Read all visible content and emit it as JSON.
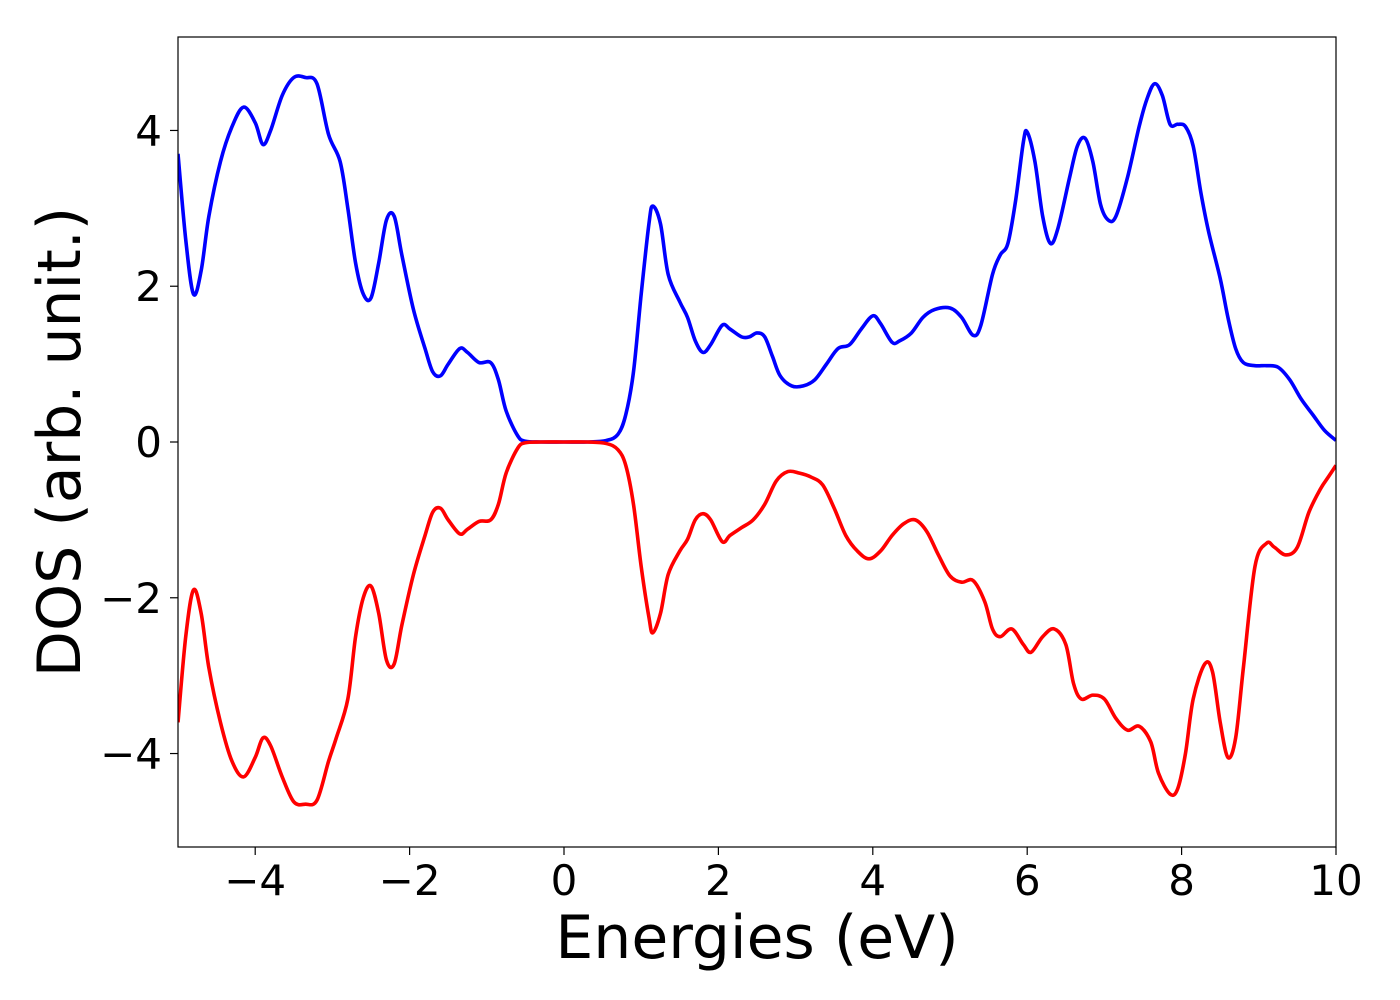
{
  "chart_data": {
    "type": "line",
    "title": "",
    "xlabel": "Energies (eV)",
    "ylabel": "DOS (arb. unit.)",
    "xlim": [
      -5,
      10
    ],
    "ylim": [
      -5.2,
      5.2
    ],
    "xticks": [
      -4,
      -2,
      0,
      2,
      4,
      6,
      8,
      10
    ],
    "xtick_labels": [
      "−4",
      "−2",
      "0",
      "2",
      "4",
      "6",
      "8",
      "10"
    ],
    "yticks": [
      -4,
      -2,
      0,
      2,
      4
    ],
    "ytick_labels": [
      "−4",
      "−2",
      "0",
      "2",
      "4"
    ],
    "grid": false,
    "legend": "none",
    "series": [
      {
        "color": "#0000ff",
        "points": [
          [
            -5.0,
            3.7
          ],
          [
            -4.9,
            2.6
          ],
          [
            -4.8,
            1.9
          ],
          [
            -4.7,
            2.2
          ],
          [
            -4.6,
            2.9
          ],
          [
            -4.45,
            3.6
          ],
          [
            -4.3,
            4.05
          ],
          [
            -4.15,
            4.3
          ],
          [
            -4.0,
            4.1
          ],
          [
            -3.9,
            3.82
          ],
          [
            -3.8,
            4.0
          ],
          [
            -3.65,
            4.45
          ],
          [
            -3.5,
            4.68
          ],
          [
            -3.35,
            4.68
          ],
          [
            -3.2,
            4.6
          ],
          [
            -3.05,
            3.95
          ],
          [
            -2.9,
            3.6
          ],
          [
            -2.8,
            3.0
          ],
          [
            -2.7,
            2.3
          ],
          [
            -2.6,
            1.9
          ],
          [
            -2.5,
            1.85
          ],
          [
            -2.4,
            2.3
          ],
          [
            -2.3,
            2.85
          ],
          [
            -2.2,
            2.9
          ],
          [
            -2.1,
            2.4
          ],
          [
            -1.95,
            1.7
          ],
          [
            -1.8,
            1.2
          ],
          [
            -1.7,
            0.9
          ],
          [
            -1.6,
            0.85
          ],
          [
            -1.5,
            1.0
          ],
          [
            -1.35,
            1.2
          ],
          [
            -1.25,
            1.15
          ],
          [
            -1.1,
            1.02
          ],
          [
            -0.95,
            1.02
          ],
          [
            -0.85,
            0.8
          ],
          [
            -0.75,
            0.4
          ],
          [
            -0.6,
            0.08
          ],
          [
            -0.5,
            0.01
          ],
          [
            -0.3,
            0.0
          ],
          [
            0.0,
            0.0
          ],
          [
            0.3,
            0.0
          ],
          [
            0.55,
            0.02
          ],
          [
            0.7,
            0.1
          ],
          [
            0.8,
            0.35
          ],
          [
            0.9,
            0.9
          ],
          [
            1.0,
            1.9
          ],
          [
            1.1,
            2.8
          ],
          [
            1.15,
            3.03
          ],
          [
            1.25,
            2.8
          ],
          [
            1.35,
            2.15
          ],
          [
            1.5,
            1.8
          ],
          [
            1.6,
            1.6
          ],
          [
            1.7,
            1.3
          ],
          [
            1.8,
            1.15
          ],
          [
            1.9,
            1.25
          ],
          [
            2.05,
            1.5
          ],
          [
            2.15,
            1.45
          ],
          [
            2.3,
            1.35
          ],
          [
            2.4,
            1.35
          ],
          [
            2.5,
            1.4
          ],
          [
            2.6,
            1.35
          ],
          [
            2.7,
            1.1
          ],
          [
            2.8,
            0.85
          ],
          [
            2.95,
            0.72
          ],
          [
            3.1,
            0.72
          ],
          [
            3.25,
            0.8
          ],
          [
            3.4,
            1.0
          ],
          [
            3.55,
            1.2
          ],
          [
            3.7,
            1.25
          ],
          [
            3.85,
            1.45
          ],
          [
            4.0,
            1.62
          ],
          [
            4.1,
            1.52
          ],
          [
            4.25,
            1.28
          ],
          [
            4.35,
            1.3
          ],
          [
            4.5,
            1.4
          ],
          [
            4.65,
            1.6
          ],
          [
            4.8,
            1.7
          ],
          [
            5.0,
            1.72
          ],
          [
            5.15,
            1.6
          ],
          [
            5.3,
            1.37
          ],
          [
            5.4,
            1.5
          ],
          [
            5.55,
            2.15
          ],
          [
            5.65,
            2.4
          ],
          [
            5.75,
            2.55
          ],
          [
            5.85,
            3.1
          ],
          [
            5.95,
            3.85
          ],
          [
            6.0,
            3.98
          ],
          [
            6.1,
            3.6
          ],
          [
            6.2,
            2.9
          ],
          [
            6.3,
            2.55
          ],
          [
            6.4,
            2.75
          ],
          [
            6.55,
            3.4
          ],
          [
            6.65,
            3.8
          ],
          [
            6.75,
            3.9
          ],
          [
            6.85,
            3.6
          ],
          [
            6.95,
            3.05
          ],
          [
            7.05,
            2.85
          ],
          [
            7.15,
            2.9
          ],
          [
            7.3,
            3.4
          ],
          [
            7.45,
            4.05
          ],
          [
            7.55,
            4.4
          ],
          [
            7.65,
            4.6
          ],
          [
            7.75,
            4.45
          ],
          [
            7.85,
            4.08
          ],
          [
            7.95,
            4.08
          ],
          [
            8.05,
            4.05
          ],
          [
            8.15,
            3.8
          ],
          [
            8.25,
            3.2
          ],
          [
            8.35,
            2.7
          ],
          [
            8.5,
            2.1
          ],
          [
            8.6,
            1.6
          ],
          [
            8.7,
            1.2
          ],
          [
            8.8,
            1.02
          ],
          [
            8.95,
            0.98
          ],
          [
            9.1,
            0.98
          ],
          [
            9.25,
            0.96
          ],
          [
            9.4,
            0.8
          ],
          [
            9.55,
            0.55
          ],
          [
            9.7,
            0.35
          ],
          [
            9.85,
            0.15
          ],
          [
            10.0,
            0.02
          ]
        ]
      },
      {
        "color": "#ff0000",
        "points": [
          [
            -5.0,
            -3.6
          ],
          [
            -4.9,
            -2.5
          ],
          [
            -4.8,
            -1.9
          ],
          [
            -4.7,
            -2.2
          ],
          [
            -4.6,
            -2.9
          ],
          [
            -4.45,
            -3.6
          ],
          [
            -4.3,
            -4.1
          ],
          [
            -4.15,
            -4.3
          ],
          [
            -4.0,
            -4.05
          ],
          [
            -3.9,
            -3.8
          ],
          [
            -3.8,
            -3.9
          ],
          [
            -3.65,
            -4.3
          ],
          [
            -3.5,
            -4.62
          ],
          [
            -3.35,
            -4.65
          ],
          [
            -3.2,
            -4.6
          ],
          [
            -3.05,
            -4.1
          ],
          [
            -2.95,
            -3.8
          ],
          [
            -2.8,
            -3.3
          ],
          [
            -2.7,
            -2.5
          ],
          [
            -2.6,
            -2.0
          ],
          [
            -2.5,
            -1.85
          ],
          [
            -2.4,
            -2.2
          ],
          [
            -2.3,
            -2.8
          ],
          [
            -2.2,
            -2.85
          ],
          [
            -2.1,
            -2.35
          ],
          [
            -1.95,
            -1.7
          ],
          [
            -1.8,
            -1.2
          ],
          [
            -1.7,
            -0.9
          ],
          [
            -1.6,
            -0.85
          ],
          [
            -1.5,
            -1.0
          ],
          [
            -1.35,
            -1.18
          ],
          [
            -1.25,
            -1.12
          ],
          [
            -1.1,
            -1.02
          ],
          [
            -0.95,
            -1.0
          ],
          [
            -0.85,
            -0.8
          ],
          [
            -0.75,
            -0.4
          ],
          [
            -0.6,
            -0.08
          ],
          [
            -0.5,
            -0.01
          ],
          [
            -0.3,
            0.0
          ],
          [
            0.0,
            0.0
          ],
          [
            0.3,
            0.0
          ],
          [
            0.55,
            -0.02
          ],
          [
            0.7,
            -0.1
          ],
          [
            0.8,
            -0.3
          ],
          [
            0.9,
            -0.8
          ],
          [
            1.0,
            -1.6
          ],
          [
            1.1,
            -2.25
          ],
          [
            1.15,
            -2.45
          ],
          [
            1.25,
            -2.2
          ],
          [
            1.35,
            -1.7
          ],
          [
            1.5,
            -1.4
          ],
          [
            1.6,
            -1.25
          ],
          [
            1.7,
            -1.0
          ],
          [
            1.8,
            -0.92
          ],
          [
            1.9,
            -1.0
          ],
          [
            2.05,
            -1.28
          ],
          [
            2.15,
            -1.2
          ],
          [
            2.3,
            -1.1
          ],
          [
            2.45,
            -1.0
          ],
          [
            2.6,
            -0.8
          ],
          [
            2.75,
            -0.5
          ],
          [
            2.9,
            -0.38
          ],
          [
            3.05,
            -0.4
          ],
          [
            3.2,
            -0.45
          ],
          [
            3.35,
            -0.55
          ],
          [
            3.5,
            -0.85
          ],
          [
            3.65,
            -1.2
          ],
          [
            3.8,
            -1.4
          ],
          [
            3.95,
            -1.5
          ],
          [
            4.1,
            -1.4
          ],
          [
            4.25,
            -1.2
          ],
          [
            4.4,
            -1.05
          ],
          [
            4.55,
            -1.0
          ],
          [
            4.7,
            -1.15
          ],
          [
            4.85,
            -1.45
          ],
          [
            5.0,
            -1.72
          ],
          [
            5.15,
            -1.8
          ],
          [
            5.3,
            -1.78
          ],
          [
            5.45,
            -2.05
          ],
          [
            5.55,
            -2.4
          ],
          [
            5.65,
            -2.5
          ],
          [
            5.8,
            -2.4
          ],
          [
            5.95,
            -2.6
          ],
          [
            6.05,
            -2.7
          ],
          [
            6.2,
            -2.5
          ],
          [
            6.35,
            -2.4
          ],
          [
            6.5,
            -2.6
          ],
          [
            6.6,
            -3.1
          ],
          [
            6.7,
            -3.3
          ],
          [
            6.85,
            -3.25
          ],
          [
            7.0,
            -3.3
          ],
          [
            7.15,
            -3.55
          ],
          [
            7.3,
            -3.7
          ],
          [
            7.45,
            -3.65
          ],
          [
            7.6,
            -3.85
          ],
          [
            7.7,
            -4.25
          ],
          [
            7.85,
            -4.52
          ],
          [
            7.95,
            -4.45
          ],
          [
            8.05,
            -4.0
          ],
          [
            8.15,
            -3.3
          ],
          [
            8.3,
            -2.85
          ],
          [
            8.4,
            -2.95
          ],
          [
            8.5,
            -3.6
          ],
          [
            8.6,
            -4.05
          ],
          [
            8.7,
            -3.8
          ],
          [
            8.8,
            -2.9
          ],
          [
            8.95,
            -1.6
          ],
          [
            9.1,
            -1.3
          ],
          [
            9.2,
            -1.35
          ],
          [
            9.35,
            -1.45
          ],
          [
            9.5,
            -1.35
          ],
          [
            9.65,
            -0.9
          ],
          [
            9.8,
            -0.6
          ],
          [
            9.9,
            -0.45
          ],
          [
            10.0,
            -0.3
          ]
        ]
      }
    ]
  }
}
